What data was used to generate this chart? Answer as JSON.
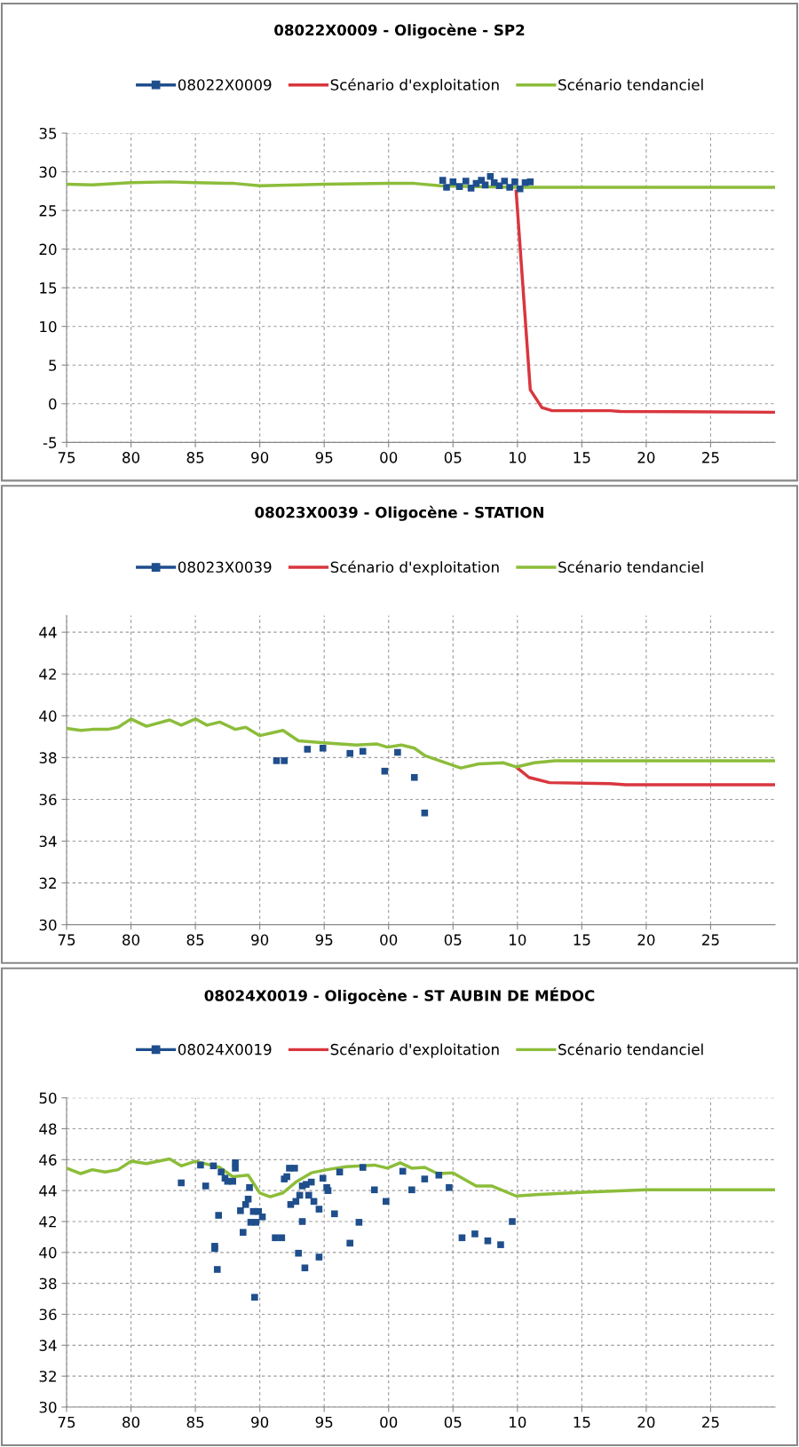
{
  "chart_data": [
    {
      "type": "line",
      "title": "08022X0009 - Oligocène - SP2",
      "legend": "top",
      "grid": true,
      "xlim": [
        1975,
        2030
      ],
      "ylim": [
        -5,
        35
      ],
      "xticks": [
        {
          "value": 1975,
          "label": "75"
        },
        {
          "value": 1980,
          "label": "80"
        },
        {
          "value": 1985,
          "label": "85"
        },
        {
          "value": 1990,
          "label": "90"
        },
        {
          "value": 1995,
          "label": "95"
        },
        {
          "value": 2000,
          "label": "00"
        },
        {
          "value": 2005,
          "label": "05"
        },
        {
          "value": 2010,
          "label": "10"
        },
        {
          "value": 2015,
          "label": "15"
        },
        {
          "value": 2020,
          "label": "20"
        },
        {
          "value": 2025,
          "label": "25"
        }
      ],
      "yticks": [
        -5,
        0,
        5,
        10,
        15,
        20,
        25,
        30,
        35
      ],
      "series": [
        {
          "name": "08022X0009",
          "type": "scatter",
          "marker": "square",
          "color": "#1f4e8c",
          "x": [
            2004.2,
            2004.5,
            2005.0,
            2005.5,
            2006.0,
            2006.4,
            2006.8,
            2007.2,
            2007.5,
            2007.9,
            2008.2,
            2008.6,
            2009.0,
            2009.4,
            2009.8,
            2010.2,
            2010.6,
            2011.0
          ],
          "values": [
            28.9,
            28.0,
            28.7,
            28.1,
            28.8,
            27.9,
            28.5,
            28.9,
            28.3,
            29.4,
            28.6,
            28.2,
            28.8,
            28.0,
            28.7,
            27.8,
            28.6,
            28.7
          ]
        },
        {
          "name": "Scénario d'exploitation",
          "type": "line",
          "color": "#d9363e",
          "x": [
            2009.9,
            2011.0,
            2011.9,
            2012.7,
            2017.2,
            2018.0,
            2030
          ],
          "values": [
            27.5,
            1.8,
            -0.5,
            -0.9,
            -0.9,
            -1.0,
            -1.1
          ]
        },
        {
          "name": "Scénario tendanciel",
          "type": "line",
          "color": "#8cbd3a",
          "x": [
            1975,
            1977,
            1980,
            1983,
            1985,
            1988,
            1990,
            1993,
            1995,
            2000,
            2002,
            2004,
            2006,
            2010,
            2011,
            2030
          ],
          "values": [
            28.4,
            28.3,
            28.6,
            28.7,
            28.6,
            28.5,
            28.2,
            28.3,
            28.4,
            28.5,
            28.5,
            28.2,
            28.1,
            28.0,
            28.0,
            28.0
          ]
        }
      ]
    },
    {
      "type": "line",
      "title": "08023X0039 - Oligocène - STATION",
      "legend": "top",
      "grid": true,
      "xlim": [
        1975,
        2030
      ],
      "ylim": [
        30,
        44.8
      ],
      "xticks": [
        {
          "value": 1975,
          "label": "75"
        },
        {
          "value": 1980,
          "label": "80"
        },
        {
          "value": 1985,
          "label": "85"
        },
        {
          "value": 1990,
          "label": "90"
        },
        {
          "value": 1995,
          "label": "95"
        },
        {
          "value": 2000,
          "label": "00"
        },
        {
          "value": 2005,
          "label": "05"
        },
        {
          "value": 2010,
          "label": "10"
        },
        {
          "value": 2015,
          "label": "15"
        },
        {
          "value": 2020,
          "label": "20"
        },
        {
          "value": 2025,
          "label": "25"
        }
      ],
      "yticks": [
        30,
        32,
        34,
        36,
        38,
        40,
        42,
        44
      ],
      "series": [
        {
          "name": "08023X0039",
          "type": "scatter",
          "marker": "square",
          "color": "#1f4e8c",
          "x": [
            1991.3,
            1991.9,
            1993.7,
            1994.9,
            1997.0,
            1998.0,
            1999.7,
            2000.7,
            2002.0,
            2002.8
          ],
          "values": [
            37.85,
            37.85,
            38.4,
            38.45,
            38.2,
            38.3,
            37.35,
            38.25,
            37.05,
            35.35
          ]
        },
        {
          "name": "Scénario d'exploitation",
          "type": "line",
          "color": "#d9363e",
          "x": [
            2009.9,
            2010.9,
            2012.5,
            2017.2,
            2018.4,
            2030
          ],
          "values": [
            37.55,
            37.05,
            36.8,
            36.75,
            36.7,
            36.7
          ]
        },
        {
          "name": "Scénario tendanciel",
          "type": "line",
          "color": "#8cbd3a",
          "x": [
            1975,
            1976.1,
            1977,
            1978.2,
            1979,
            1980,
            1981.2,
            1983,
            1983.9,
            1985,
            1985.9,
            1986.9,
            1988.1,
            1988.9,
            1990,
            1991.8,
            1993,
            1995.2,
            1997.5,
            1999.1,
            1999.9,
            2001,
            2002,
            2002.8,
            2004.2,
            2005.6,
            2007,
            2008.9,
            2009.9,
            2011.3,
            2012.9,
            2030
          ],
          "values": [
            39.4,
            39.3,
            39.35,
            39.35,
            39.45,
            39.85,
            39.5,
            39.8,
            39.55,
            39.85,
            39.55,
            39.7,
            39.35,
            39.45,
            39.05,
            39.3,
            38.8,
            38.7,
            38.6,
            38.65,
            38.5,
            38.6,
            38.45,
            38.1,
            37.8,
            37.5,
            37.7,
            37.75,
            37.55,
            37.75,
            37.85,
            37.85
          ]
        }
      ]
    },
    {
      "type": "line",
      "title": "08024X0019 - Oligocène - ST AUBIN DE MÉDOC",
      "legend": "top",
      "grid": true,
      "xlim": [
        1975,
        2030
      ],
      "ylim": [
        30,
        50
      ],
      "xticks": [
        {
          "value": 1975,
          "label": "75"
        },
        {
          "value": 1980,
          "label": "80"
        },
        {
          "value": 1985,
          "label": "85"
        },
        {
          "value": 1990,
          "label": "90"
        },
        {
          "value": 1995,
          "label": "95"
        },
        {
          "value": 2000,
          "label": "00"
        },
        {
          "value": 2005,
          "label": "05"
        },
        {
          "value": 2010,
          "label": "10"
        },
        {
          "value": 2015,
          "label": "15"
        },
        {
          "value": 2020,
          "label": "20"
        },
        {
          "value": 2025,
          "label": "25"
        }
      ],
      "yticks": [
        30,
        32,
        34,
        36,
        38,
        40,
        42,
        44,
        46,
        48,
        50
      ],
      "series": [
        {
          "name": "08024X0019",
          "type": "scatter",
          "marker": "square",
          "color": "#1f4e8c",
          "x": [
            1983.9,
            1985.4,
            1985.8,
            1986.4,
            1986.5,
            1986.5,
            1986.7,
            1986.8,
            1987.0,
            1987.3,
            1987.5,
            1987.9,
            1988.1,
            1988.1,
            1988.5,
            1988.7,
            1988.9,
            1989.1,
            1989.2,
            1989.3,
            1989.5,
            1989.6,
            1989.7,
            1989.9,
            1990.2,
            1991.2,
            1991.7,
            1991.9,
            1992.1,
            1992.3,
            1992.4,
            1992.7,
            1992.8,
            1993.0,
            1993.1,
            1993.3,
            1993.3,
            1993.5,
            1993.6,
            1993.8,
            1994.0,
            1994.2,
            1994.6,
            1994.6,
            1994.9,
            1995.2,
            1995.3,
            1995.8,
            1996.2,
            1997.0,
            1997.7,
            1998.0,
            1998.9,
            1999.8,
            2001.1,
            2001.8,
            2002.8,
            2003.9,
            2004.7,
            2005.7,
            2006.7,
            2007.7,
            2008.7,
            2009.6
          ],
          "values": [
            44.5,
            45.65,
            44.3,
            45.6,
            40.4,
            40.25,
            38.9,
            42.4,
            45.2,
            44.8,
            44.6,
            44.6,
            45.45,
            45.8,
            42.7,
            41.3,
            43.1,
            43.45,
            44.2,
            41.95,
            42.65,
            37.1,
            41.95,
            42.65,
            42.3,
            40.95,
            40.95,
            44.75,
            44.9,
            45.45,
            43.1,
            45.45,
            43.3,
            39.95,
            43.7,
            42.0,
            44.3,
            39.0,
            44.4,
            43.7,
            44.55,
            43.3,
            42.8,
            39.7,
            44.8,
            44.2,
            44.0,
            42.5,
            45.2,
            40.6,
            41.95,
            45.5,
            44.05,
            43.3,
            45.25,
            44.05,
            44.75,
            45.0,
            44.2,
            40.95,
            41.2,
            40.75,
            40.5,
            42.0
          ]
        },
        {
          "name": "Scénario d'exploitation",
          "type": "line",
          "color": "#d9363e"
        },
        {
          "name": "Scénario tendanciel",
          "type": "line",
          "color": "#8cbd3a",
          "x": [
            1975,
            1976.1,
            1977,
            1978,
            1979,
            1980,
            1981.2,
            1983,
            1983.9,
            1985,
            1986.9,
            1987.9,
            1989.1,
            1990,
            1990.8,
            1991.8,
            1992.8,
            1994,
            1995.2,
            1996.7,
            1998.9,
            1999.9,
            2000.9,
            2001.8,
            2002.8,
            2003.8,
            2005,
            2006.8,
            2008,
            2009.9,
            2011.7,
            2015.2,
            2020,
            2030
          ],
          "values": [
            45.45,
            45.1,
            45.35,
            45.2,
            45.35,
            45.9,
            45.75,
            46.05,
            45.6,
            45.9,
            45.5,
            44.9,
            45.0,
            43.85,
            43.6,
            43.85,
            44.55,
            45.15,
            45.35,
            45.55,
            45.65,
            45.45,
            45.8,
            45.45,
            45.5,
            45.1,
            45.15,
            44.3,
            44.3,
            43.65,
            43.75,
            43.9,
            44.05,
            44.05
          ]
        }
      ]
    }
  ]
}
